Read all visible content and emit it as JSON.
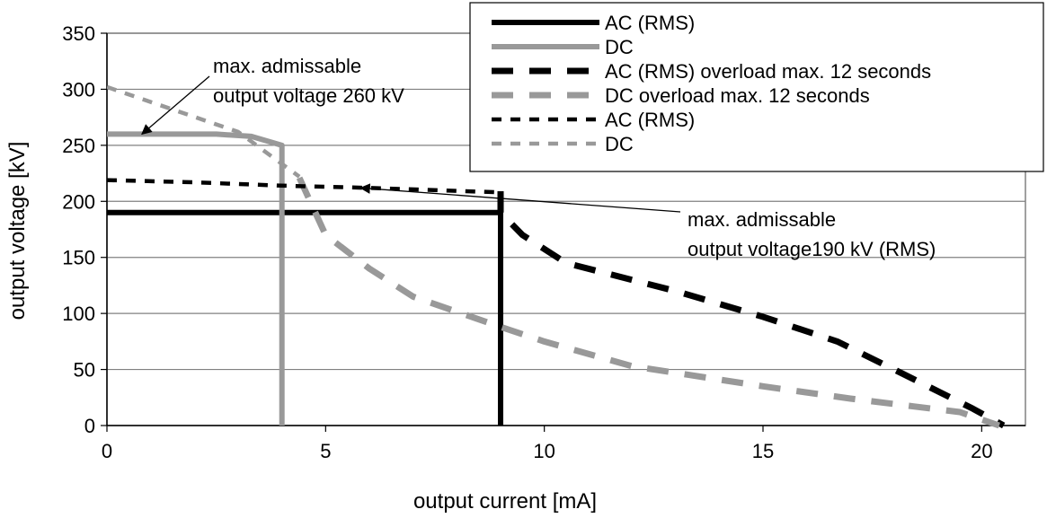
{
  "chart_data": {
    "type": "line",
    "xlabel": "output current [mA]",
    "ylabel": "output voltage [kV]",
    "xlim": [
      0,
      21
    ],
    "ylim": [
      0,
      350
    ],
    "x_ticks": [
      0,
      5,
      10,
      15,
      20
    ],
    "y_ticks": [
      0,
      50,
      100,
      150,
      200,
      250,
      300,
      350
    ],
    "grid": {
      "x": false,
      "y": true
    },
    "legend_position": "top-right",
    "series": [
      {
        "name": "AC (RMS)",
        "color": "#000000",
        "style": "solid",
        "points": [
          [
            0,
            190
          ],
          [
            9,
            190
          ],
          [
            9,
            0
          ]
        ]
      },
      {
        "name": "DC",
        "color": "#999999",
        "style": "solid",
        "points": [
          [
            0,
            260
          ],
          [
            2.5,
            260
          ],
          [
            3.3,
            258
          ],
          [
            4,
            250
          ],
          [
            4,
            0
          ]
        ]
      },
      {
        "name": "AC (RMS) overload max. 12 seconds",
        "color": "#000000",
        "style": "dash",
        "points": [
          [
            9,
            209
          ],
          [
            9,
            190
          ],
          [
            9.5,
            170
          ],
          [
            10.5,
            145
          ],
          [
            13,
            120
          ],
          [
            15,
            97
          ],
          [
            16.7,
            75
          ],
          [
            18,
            50
          ],
          [
            19.8,
            15
          ],
          [
            20.5,
            0
          ]
        ]
      },
      {
        "name": "DC overload max. 12 seconds",
        "color": "#999999",
        "style": "dash",
        "points": [
          [
            4.4,
            221
          ],
          [
            5,
            170
          ],
          [
            6,
            140
          ],
          [
            7,
            115
          ],
          [
            9,
            88
          ],
          [
            10,
            75
          ],
          [
            12,
            53
          ],
          [
            15,
            35
          ],
          [
            17,
            24
          ],
          [
            19.5,
            12
          ],
          [
            20.4,
            0
          ]
        ]
      },
      {
        "name": "AC (RMS)",
        "color": "#000000",
        "style": "dot",
        "points": [
          [
            0,
            219
          ],
          [
            2,
            217
          ],
          [
            4,
            214
          ],
          [
            6,
            212
          ],
          [
            9,
            208
          ]
        ]
      },
      {
        "name": "DC",
        "color": "#999999",
        "style": "dot",
        "points": [
          [
            0,
            302
          ],
          [
            1.5,
            282
          ],
          [
            3,
            262
          ],
          [
            4.4,
            222
          ]
        ]
      }
    ],
    "annotations": [
      {
        "lines": [
          "max. admissable",
          "output voltage 260 kV"
        ],
        "point_to": [
          0.8,
          260
        ]
      },
      {
        "lines": [
          "max. admissable",
          "output voltage190 kV (RMS)"
        ],
        "point_to": [
          5.8,
          212
        ]
      }
    ]
  }
}
